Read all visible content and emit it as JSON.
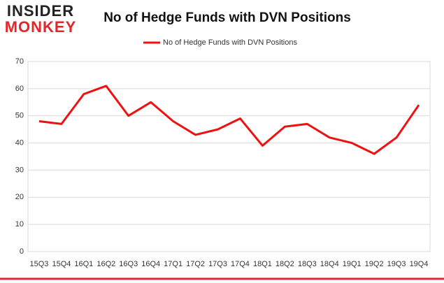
{
  "logo": {
    "top": "INSIDER",
    "bottom": "MONKEY"
  },
  "chart_data": {
    "type": "line",
    "title": "No of Hedge Funds with DVN Positions",
    "categories": [
      "15Q3",
      "15Q4",
      "16Q1",
      "16Q2",
      "16Q3",
      "16Q4",
      "17Q1",
      "17Q2",
      "17Q3",
      "17Q4",
      "18Q1",
      "18Q2",
      "18Q3",
      "18Q4",
      "19Q1",
      "19Q2",
      "19Q3",
      "19Q4"
    ],
    "series": [
      {
        "name": "No of Hedge Funds with DVN Positions",
        "color": "#ee1111",
        "values": [
          48,
          47,
          58,
          61,
          50,
          55,
          48,
          43,
          45,
          49,
          39,
          46,
          47,
          42,
          40,
          36,
          42,
          54
        ]
      }
    ],
    "ylim": [
      0,
      70
    ],
    "yticks": [
      0,
      10,
      20,
      30,
      40,
      50,
      60,
      70
    ],
    "grid": true,
    "legend": "top"
  }
}
